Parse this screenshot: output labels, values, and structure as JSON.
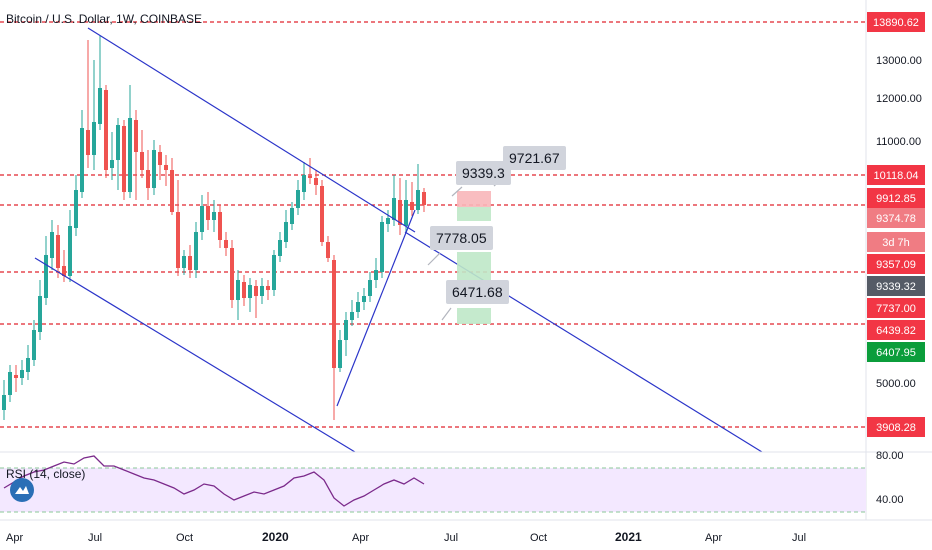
{
  "header": {
    "symbol_title": "Bitcoin / U.S. Dollar, 1W, COINBASE"
  },
  "indicator": {
    "rsi_title": "RSI (14, close)",
    "rsi_upper_label": "80.00",
    "rsi_lower_label": "40.00",
    "icon_name": "tradingview-logo-icon"
  },
  "price_axis": {
    "ticks": [
      "13000.00",
      "12000.00",
      "11000.00",
      "5000.00"
    ],
    "badges": [
      {
        "text": "13890.62",
        "color": "#f23645",
        "line": true
      },
      {
        "text": "10118.04",
        "color": "#f23645",
        "line": true
      },
      {
        "text": "9912.85",
        "color": "#f23645",
        "line": false
      },
      {
        "text": "9374.78",
        "color": "#f07c83",
        "line": false
      },
      {
        "text": "3d 7h",
        "color": "#f07c83",
        "line": false
      },
      {
        "text": "9357.09",
        "color": "#f23645",
        "line": true
      },
      {
        "text": "9339.32",
        "color": "#555b66",
        "line": false
      },
      {
        "text": "7737.00",
        "color": "#f23645",
        "line": false
      },
      {
        "text": "6439.82",
        "color": "#f23645",
        "line": true
      },
      {
        "text": "6407.95",
        "color": "#0b9d3b",
        "line": false
      },
      {
        "text": "3908.28",
        "color": "#f23645",
        "line": true
      }
    ]
  },
  "time_axis": {
    "labels": [
      "Apr",
      "Jul",
      "Oct",
      "2020",
      "Apr",
      "Jul",
      "Oct",
      "2021",
      "Apr",
      "Jul"
    ]
  },
  "callouts": {
    "c1": "9339.3",
    "c2": "9721.67",
    "c3": "7778.05",
    "c4": "6471.68"
  },
  "colors": {
    "up": "#26a69a",
    "down": "#ef5350",
    "trendline": "#2b35c9",
    "level": "#e0242e",
    "rsi_line": "#7b2a8b",
    "rsi_band": "#f3e8ff"
  }
}
